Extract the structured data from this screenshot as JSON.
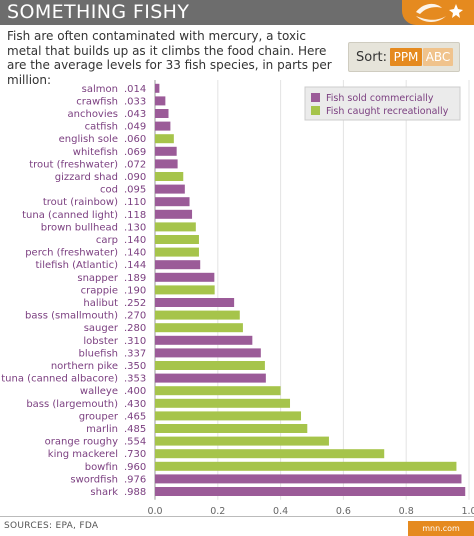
{
  "header": {
    "title": "SOMETHING FISHY"
  },
  "intro": "Fish are often contaminated with mercury, a toxic metal that builds up as it climbs the food chain. Here are the average levels for 33 fish species, in parts per million:",
  "sort": {
    "label": "Sort:",
    "ppm_label": "PPM",
    "abc_label": "ABC",
    "selected": "PPM"
  },
  "legend": {
    "commercial": "Fish sold commercially",
    "recreational": "Fish caught recreationally"
  },
  "colors": {
    "commercial": "#9b5b98",
    "recreational": "#a6c44b",
    "label_text": "#7b3f80",
    "accent": "#e58a1f",
    "header_bg": "#6d6d6d"
  },
  "footer": {
    "sources": "SOURCES: EPA, FDA",
    "badge": "mnn.com"
  },
  "chart_data": {
    "type": "bar",
    "orientation": "horizontal",
    "xlim": [
      0,
      1.0
    ],
    "x_ticks": [
      "0.0",
      "0.2",
      "0.4",
      "0.6",
      "0.8",
      "1.0"
    ],
    "grid": true,
    "legend_position": "top-right",
    "bars": [
      {
        "name": "salmon",
        "label": ".014",
        "value": 0.014,
        "group": "commercial"
      },
      {
        "name": "crawfish",
        "label": ".033",
        "value": 0.033,
        "group": "commercial"
      },
      {
        "name": "anchovies",
        "label": ".043",
        "value": 0.043,
        "group": "commercial"
      },
      {
        "name": "catfish",
        "label": ".049",
        "value": 0.049,
        "group": "commercial"
      },
      {
        "name": "english sole",
        "label": ".060",
        "value": 0.06,
        "group": "recreational"
      },
      {
        "name": "whitefish",
        "label": ".069",
        "value": 0.069,
        "group": "commercial"
      },
      {
        "name": "trout (freshwater)",
        "label": ".072",
        "value": 0.072,
        "group": "commercial"
      },
      {
        "name": "gizzard shad",
        "label": ".090",
        "value": 0.09,
        "group": "recreational"
      },
      {
        "name": "cod",
        "label": ".095",
        "value": 0.095,
        "group": "commercial"
      },
      {
        "name": "trout (rainbow)",
        "label": ".110",
        "value": 0.11,
        "group": "commercial"
      },
      {
        "name": "tuna (canned light)",
        "label": ".118",
        "value": 0.118,
        "group": "commercial"
      },
      {
        "name": "brown bullhead",
        "label": ".130",
        "value": 0.13,
        "group": "recreational"
      },
      {
        "name": "carp",
        "label": ".140",
        "value": 0.14,
        "group": "recreational"
      },
      {
        "name": "perch (freshwater)",
        "label": ".140",
        "value": 0.14,
        "group": "recreational"
      },
      {
        "name": "tilefish (Atlantic)",
        "label": ".144",
        "value": 0.144,
        "group": "commercial"
      },
      {
        "name": "snapper",
        "label": ".189",
        "value": 0.189,
        "group": "commercial"
      },
      {
        "name": "crappie",
        "label": ".190",
        "value": 0.19,
        "group": "recreational"
      },
      {
        "name": "halibut",
        "label": ".252",
        "value": 0.252,
        "group": "commercial"
      },
      {
        "name": "bass (smallmouth)",
        "label": ".270",
        "value": 0.27,
        "group": "recreational"
      },
      {
        "name": "sauger",
        "label": ".280",
        "value": 0.28,
        "group": "recreational"
      },
      {
        "name": "lobster",
        "label": ".310",
        "value": 0.31,
        "group": "commercial"
      },
      {
        "name": "bluefish",
        "label": ".337",
        "value": 0.337,
        "group": "commercial"
      },
      {
        "name": "northern pike",
        "label": ".350",
        "value": 0.35,
        "group": "recreational"
      },
      {
        "name": "tuna (canned albacore)",
        "label": ".353",
        "value": 0.353,
        "group": "commercial"
      },
      {
        "name": "walleye",
        "label": ".400",
        "value": 0.4,
        "group": "recreational"
      },
      {
        "name": "bass (largemouth)",
        "label": ".430",
        "value": 0.43,
        "group": "recreational"
      },
      {
        "name": "grouper",
        "label": ".465",
        "value": 0.465,
        "group": "recreational"
      },
      {
        "name": "marlin",
        "label": ".485",
        "value": 0.485,
        "group": "recreational"
      },
      {
        "name": "orange roughy",
        "label": ".554",
        "value": 0.554,
        "group": "recreational"
      },
      {
        "name": "king mackerel",
        "label": ".730",
        "value": 0.73,
        "group": "recreational"
      },
      {
        "name": "bowfin",
        "label": ".960",
        "value": 0.96,
        "group": "recreational"
      },
      {
        "name": "swordfish",
        "label": ".976",
        "value": 0.976,
        "group": "commercial"
      },
      {
        "name": "shark",
        "label": ".988",
        "value": 0.988,
        "group": "commercial"
      }
    ]
  }
}
